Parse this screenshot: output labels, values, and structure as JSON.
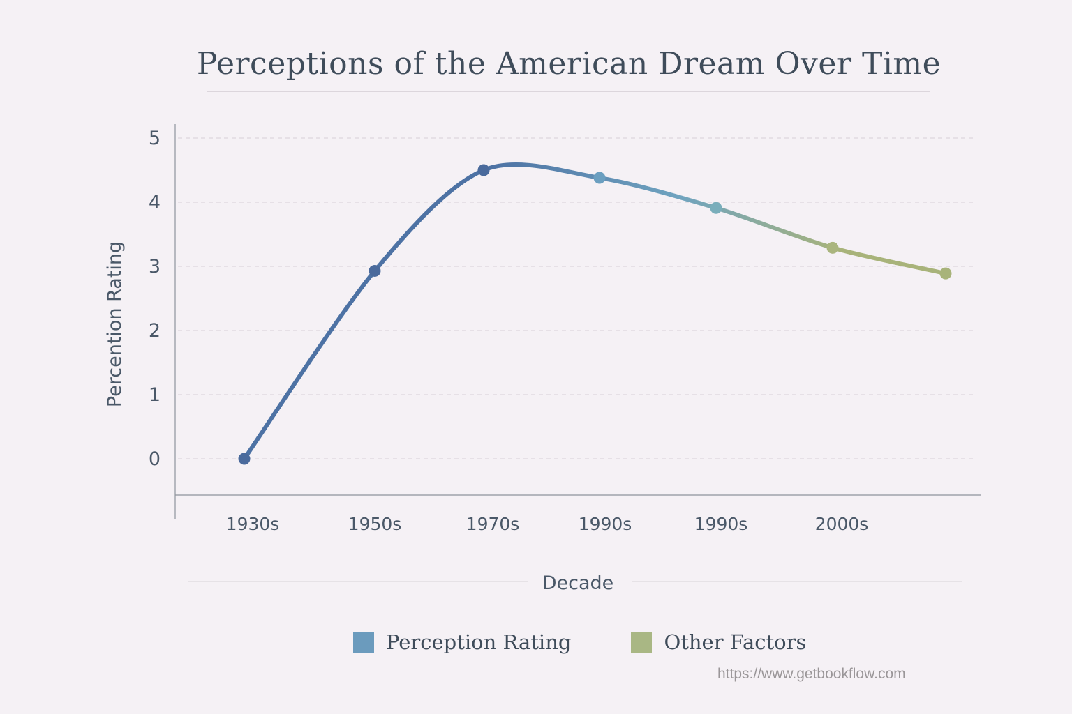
{
  "chart_data": {
    "type": "line",
    "title": "Perceptions of the American Dream Over Time",
    "xlabel": "Decade",
    "ylabel": "Percention Rating",
    "categories": [
      "1930s",
      "1950s",
      "1970s",
      "1990s",
      "1990s",
      "2000s",
      ""
    ],
    "series": [
      {
        "values": [
          0,
          2.93,
          4.5,
          4.38,
          3.91,
          3.29,
          2.89
        ],
        "point_colors": [
          "#4a6a9c",
          "#4a6a9c",
          "#4a6a9c",
          "#6b9fc0",
          "#7aaebb",
          "#aab57e",
          "#a8b37a"
        ]
      }
    ],
    "line_gradient": [
      "#4d72a4",
      "#6fa3bf",
      "#a8b37a"
    ],
    "ylim": [
      -0.55,
      5.2
    ],
    "yticks": [
      "0",
      "1",
      "2",
      "3",
      "4",
      "5"
    ],
    "grid": "horizontal dashed",
    "legend": {
      "placement": "bottom",
      "items": [
        {
          "label": "Perception Rating",
          "color": "#6b9bbd"
        },
        {
          "label": "Other Factors",
          "color": "#a9b784"
        }
      ]
    }
  },
  "watermark": "https://www.getbookflow.com"
}
